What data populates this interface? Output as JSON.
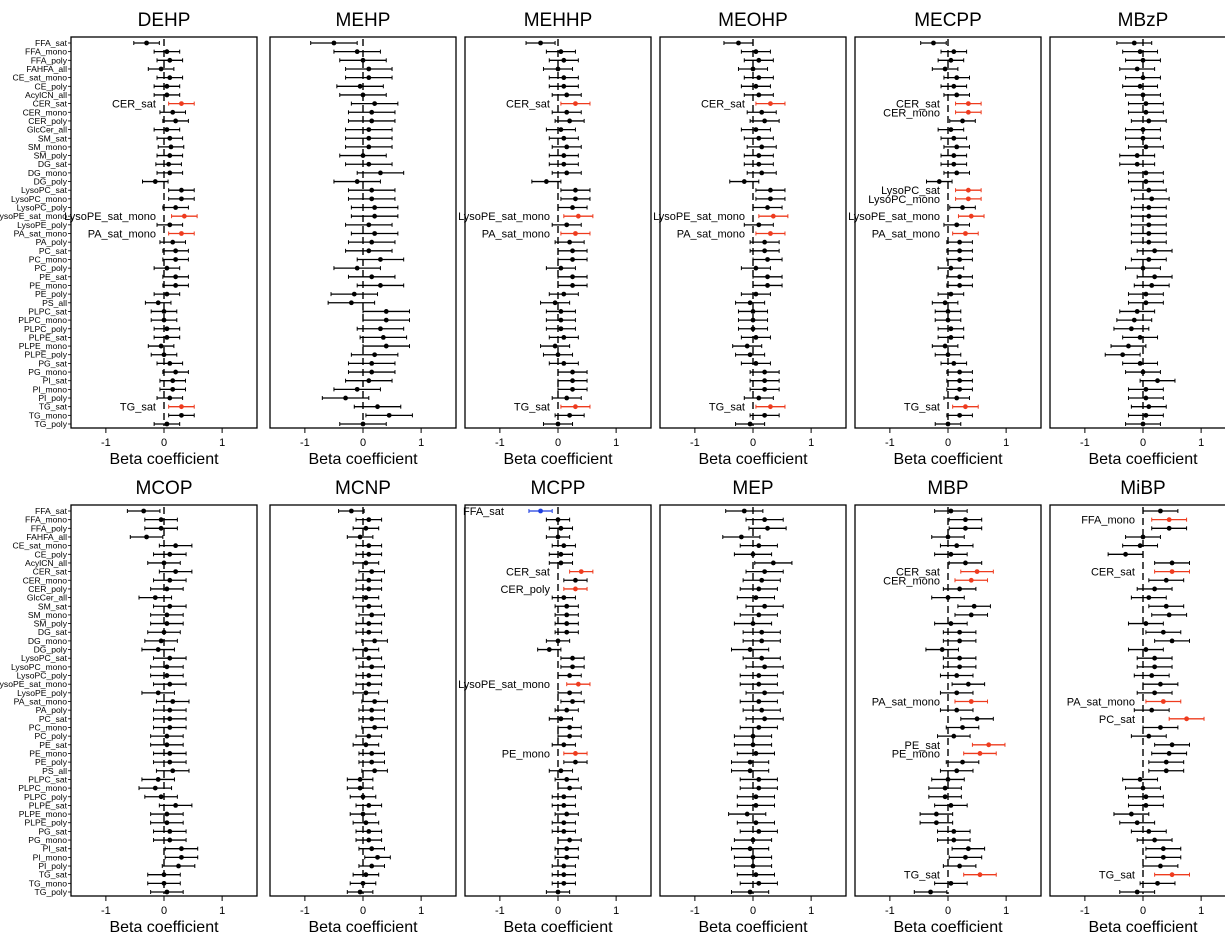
{
  "chart_data": {
    "type": "forest",
    "xlabel": "Beta coefficient",
    "xlim": [
      -1.6,
      1.6
    ],
    "xticks": [
      -1,
      0,
      1
    ],
    "xtick_labels": [
      "-1",
      "0",
      "1"
    ],
    "colors": {
      "default": "#000000",
      "positive": "#ee3b1e",
      "negative": "#1f3fe0"
    },
    "categories": [
      "FFA_sat",
      "FFA_mono",
      "FFA_poly",
      "FAHFA_all",
      "CE_sat_mono",
      "CE_poly",
      "AcylCN_all",
      "CER_sat",
      "CER_mono",
      "CER_poly",
      "GlcCer_all",
      "SM_sat",
      "SM_mono",
      "SM_poly",
      "DG_sat",
      "DG_mono",
      "DG_poly",
      "LysoPC_sat",
      "LysoPC_mono",
      "LysoPC_poly",
      "LysoPE_sat_mono",
      "LysoPE_poly",
      "PA_sat_mono",
      "PA_poly",
      "PC_sat",
      "PC_mono",
      "PC_poly",
      "PE_sat",
      "PE_mono",
      "PE_poly",
      "PS_all",
      "PLPC_sat",
      "PLPC_mono",
      "PLPC_poly",
      "PLPE_sat",
      "PLPE_mono",
      "PLPE_poly",
      "PG_sat",
      "PG_mono",
      "PI_sat",
      "PI_mono",
      "PI_poly",
      "TG_sat",
      "TG_mono",
      "TG_poly"
    ],
    "panels": [
      {
        "title": "DEHP",
        "halfwidth": 0.22,
        "values": [
          -0.3,
          0.05,
          0.1,
          -0.05,
          0.1,
          0.05,
          0.05,
          0.3,
          0.15,
          0.2,
          0.05,
          0.1,
          0.12,
          0.1,
          0.08,
          0.1,
          -0.15,
          0.3,
          0.3,
          0.2,
          0.35,
          0.1,
          0.3,
          0.15,
          0.2,
          0.2,
          0.05,
          0.2,
          0.2,
          0.05,
          -0.1,
          0.0,
          0.0,
          0.05,
          0.05,
          -0.05,
          0.0,
          0.1,
          0.2,
          0.15,
          0.15,
          0.1,
          0.3,
          0.3,
          0.05
        ],
        "highlights": [
          "CER_sat",
          "LysoPE_sat_mono",
          "PA_sat_mono",
          "TG_sat"
        ],
        "negatives": []
      },
      {
        "title": "MEHP",
        "halfwidth": 0.4,
        "values": [
          -0.5,
          -0.1,
          0.0,
          0.1,
          0.1,
          -0.05,
          0.0,
          0.2,
          0.15,
          0.15,
          0.1,
          0.1,
          0.1,
          0.0,
          0.1,
          0.3,
          -0.1,
          0.15,
          0.15,
          0.2,
          0.2,
          0.1,
          0.2,
          0.15,
          0.1,
          0.3,
          -0.1,
          0.15,
          0.3,
          -0.15,
          -0.2,
          0.4,
          0.4,
          0.3,
          0.35,
          0.4,
          0.2,
          0.15,
          0.15,
          0.1,
          -0.1,
          -0.3,
          0.25,
          0.45,
          0.0
        ],
        "highlights": [],
        "negatives": []
      },
      {
        "title": "MEHHP",
        "halfwidth": 0.25,
        "values": [
          -0.3,
          0.05,
          0.1,
          0.0,
          0.1,
          0.1,
          0.15,
          0.3,
          0.15,
          0.2,
          0.05,
          0.1,
          0.15,
          0.1,
          0.1,
          0.15,
          -0.2,
          0.3,
          0.3,
          0.25,
          0.35,
          0.15,
          0.3,
          0.2,
          0.25,
          0.25,
          0.05,
          0.25,
          0.25,
          0.1,
          -0.05,
          0.05,
          0.05,
          0.05,
          0.1,
          -0.05,
          0.0,
          0.1,
          0.25,
          0.25,
          0.25,
          0.15,
          0.3,
          0.2,
          0.0
        ],
        "highlights": [
          "CER_sat",
          "LysoPE_sat_mono",
          "PA_sat_mono",
          "TG_sat"
        ],
        "negatives": []
      },
      {
        "title": "MEOHP",
        "halfwidth": 0.25,
        "values": [
          -0.25,
          0.05,
          0.1,
          0.0,
          0.1,
          0.05,
          0.1,
          0.3,
          0.15,
          0.2,
          0.05,
          0.1,
          0.15,
          0.1,
          0.1,
          0.15,
          -0.15,
          0.3,
          0.3,
          0.25,
          0.35,
          0.1,
          0.3,
          0.2,
          0.2,
          0.25,
          0.05,
          0.25,
          0.25,
          0.05,
          -0.05,
          0.0,
          0.0,
          0.0,
          0.05,
          -0.1,
          -0.05,
          0.05,
          0.2,
          0.2,
          0.2,
          0.1,
          0.3,
          0.2,
          -0.05
        ],
        "highlights": [
          "CER_sat",
          "LysoPE_sat_mono",
          "PA_sat_mono",
          "TG_sat"
        ],
        "negatives": []
      },
      {
        "title": "MECPP",
        "halfwidth": 0.22,
        "values": [
          -0.25,
          0.1,
          0.05,
          -0.05,
          0.15,
          0.1,
          0.15,
          0.35,
          0.35,
          0.25,
          0.05,
          0.1,
          0.15,
          0.1,
          0.1,
          0.15,
          -0.15,
          0.35,
          0.35,
          0.25,
          0.4,
          0.15,
          0.3,
          0.2,
          0.2,
          0.2,
          0.05,
          0.2,
          0.2,
          0.05,
          -0.05,
          0.0,
          0.0,
          0.05,
          0.05,
          -0.05,
          0.0,
          0.1,
          0.2,
          0.2,
          0.2,
          0.15,
          0.3,
          0.2,
          0.0
        ],
        "highlights": [
          "CER_sat",
          "CER_mono",
          "LysoPC_sat",
          "LysoPC_mono",
          "LysoPE_sat_mono",
          "PA_sat_mono",
          "TG_sat"
        ],
        "negatives": []
      },
      {
        "title": "MBzP",
        "halfwidth": 0.3,
        "values": [
          -0.15,
          -0.05,
          0.0,
          -0.1,
          0.0,
          -0.05,
          0.0,
          0.05,
          0.05,
          0.1,
          0.0,
          0.0,
          0.05,
          -0.1,
          -0.1,
          0.05,
          0.05,
          0.1,
          0.15,
          0.1,
          0.1,
          0.1,
          0.1,
          0.1,
          0.2,
          0.1,
          0.0,
          0.2,
          0.15,
          0.05,
          0.05,
          -0.1,
          -0.15,
          -0.2,
          -0.05,
          -0.25,
          -0.35,
          -0.05,
          0.0,
          0.25,
          0.05,
          0.05,
          0.1,
          0.05,
          0.0
        ],
        "highlights": [],
        "negatives": []
      },
      {
        "title": "MCOP",
        "halfwidth": 0.28,
        "values": [
          -0.35,
          -0.05,
          -0.05,
          -0.3,
          0.2,
          0.1,
          0.0,
          0.2,
          0.1,
          0.05,
          -0.15,
          0.1,
          0.05,
          0.05,
          0.0,
          -0.05,
          -0.1,
          0.1,
          0.05,
          0.05,
          0.1,
          -0.1,
          0.15,
          0.1,
          0.1,
          0.1,
          0.05,
          0.05,
          0.1,
          0.1,
          0.15,
          -0.1,
          -0.15,
          -0.05,
          0.2,
          0.05,
          0.05,
          0.1,
          0.1,
          0.3,
          0.3,
          0.25,
          0.0,
          0.0,
          0.05
        ],
        "highlights": [],
        "negatives": []
      },
      {
        "title": "MCNP",
        "halfwidth": 0.22,
        "values": [
          -0.2,
          0.1,
          0.05,
          -0.05,
          0.1,
          0.1,
          0.05,
          0.15,
          0.1,
          0.1,
          0.05,
          0.1,
          0.15,
          0.1,
          0.1,
          0.2,
          0.05,
          0.1,
          0.15,
          0.1,
          0.1,
          0.05,
          0.2,
          0.15,
          0.15,
          0.2,
          0.1,
          0.05,
          0.15,
          0.15,
          0.2,
          -0.05,
          -0.05,
          0.0,
          0.1,
          0.0,
          0.05,
          0.1,
          0.1,
          0.15,
          0.25,
          0.15,
          0.05,
          0.0,
          -0.05
        ],
        "highlights": [],
        "negatives": []
      },
      {
        "title": "MCPP",
        "halfwidth": 0.2,
        "values": [
          -0.3,
          0.0,
          0.05,
          0.0,
          0.1,
          0.05,
          0.05,
          0.4,
          0.3,
          0.3,
          0.1,
          0.15,
          0.15,
          0.15,
          0.15,
          0.0,
          -0.15,
          0.25,
          0.25,
          0.2,
          0.35,
          0.2,
          0.25,
          0.15,
          0.05,
          0.2,
          0.2,
          0.1,
          0.3,
          0.3,
          0.05,
          0.15,
          0.2,
          0.1,
          0.1,
          0.15,
          0.1,
          0.1,
          0.2,
          0.15,
          0.15,
          0.1,
          0.1,
          0.1,
          0.0
        ],
        "highlights": [
          "CER_sat",
          "CER_poly",
          "LysoPE_sat_mono",
          "PE_mono"
        ],
        "negatives": [
          "FFA_sat"
        ]
      },
      {
        "title": "MEP",
        "halfwidth": 0.32,
        "values": [
          -0.15,
          0.2,
          0.25,
          -0.2,
          0.1,
          0.0,
          0.35,
          0.2,
          0.15,
          0.1,
          0.05,
          0.2,
          0.1,
          0.0,
          0.15,
          0.15,
          -0.05,
          0.15,
          0.2,
          0.1,
          0.1,
          0.2,
          0.1,
          0.15,
          0.2,
          0.1,
          0.0,
          0.0,
          0.05,
          -0.05,
          -0.05,
          0.1,
          0.1,
          0.05,
          0.05,
          -0.1,
          0.05,
          0.1,
          0.0,
          -0.05,
          0.0,
          0.0,
          0.05,
          0.1,
          -0.05
        ],
        "highlights": [],
        "negatives": []
      },
      {
        "title": "MBP",
        "halfwidth": 0.28,
        "values": [
          0.05,
          0.3,
          0.3,
          0.0,
          0.15,
          0.05,
          0.3,
          0.5,
          0.4,
          0.2,
          0.0,
          0.45,
          0.4,
          0.05,
          0.2,
          0.2,
          -0.1,
          0.2,
          0.2,
          0.15,
          0.35,
          0.15,
          0.4,
          0.15,
          0.5,
          0.25,
          0.1,
          0.7,
          0.55,
          0.25,
          0.15,
          0.0,
          -0.05,
          -0.05,
          0.05,
          -0.2,
          -0.2,
          0.1,
          0.1,
          0.35,
          0.3,
          0.2,
          0.55,
          0.05,
          -0.3
        ],
        "highlights": [
          "CER_sat",
          "CER_mono",
          "PA_sat_mono",
          "PE_sat",
          "PE_mono",
          "TG_sat"
        ],
        "negatives": []
      },
      {
        "title": "MiBP",
        "halfwidth": 0.3,
        "values": [
          0.3,
          0.45,
          0.45,
          0.0,
          -0.05,
          -0.3,
          0.5,
          0.5,
          0.4,
          0.2,
          0.1,
          0.4,
          0.45,
          0.05,
          0.35,
          0.5,
          0.05,
          0.2,
          0.2,
          0.15,
          0.3,
          0.2,
          0.35,
          0.15,
          0.75,
          0.3,
          0.1,
          0.5,
          0.45,
          0.4,
          0.4,
          -0.05,
          0.0,
          0.05,
          0.05,
          -0.2,
          -0.1,
          0.1,
          0.2,
          0.35,
          0.35,
          0.3,
          0.5,
          0.25,
          -0.1
        ],
        "highlights": [
          "FFA_mono",
          "CER_sat",
          "PA_sat_mono",
          "PC_sat",
          "TG_sat"
        ],
        "negatives": []
      }
    ]
  }
}
